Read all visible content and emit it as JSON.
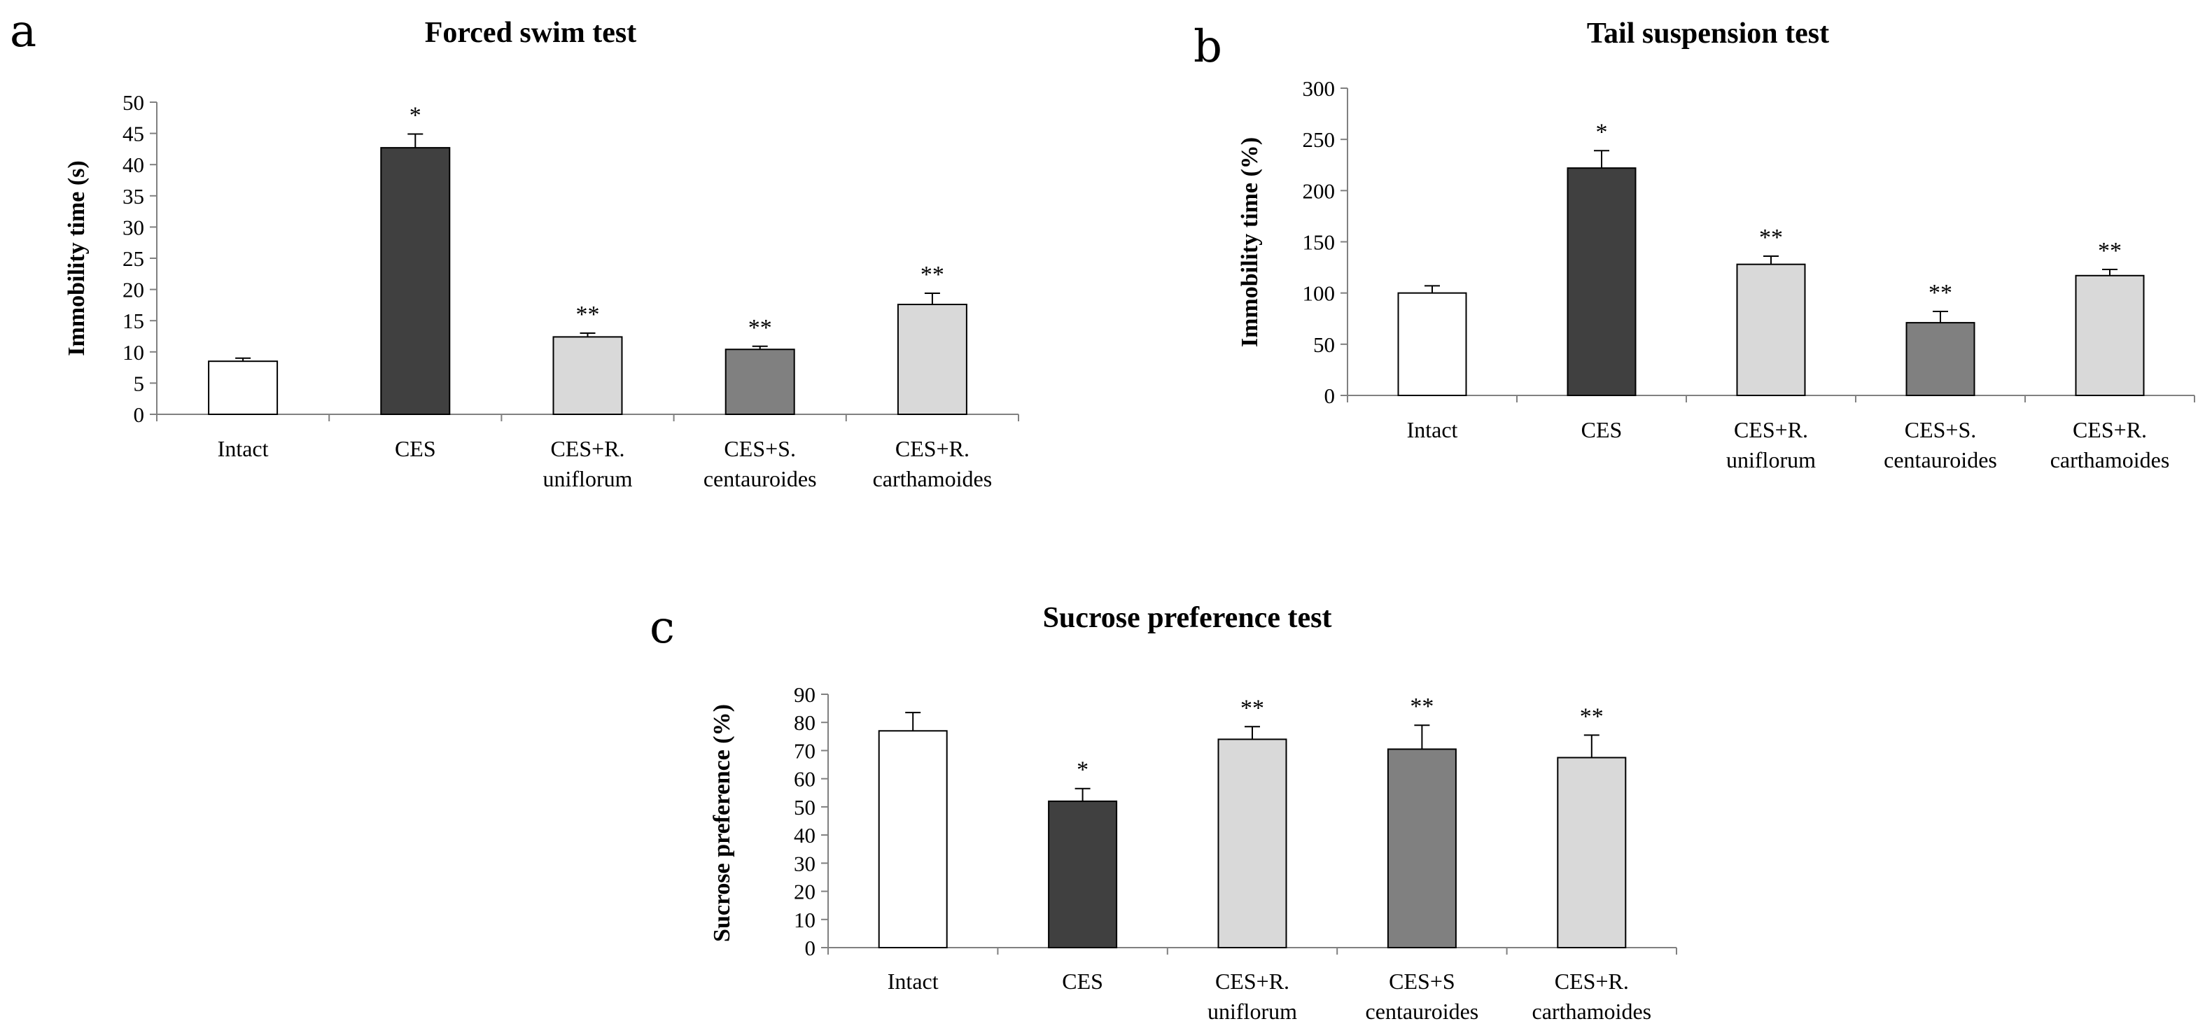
{
  "chart_data": [
    {
      "type": "bar",
      "panel": "a",
      "title": "Forced swim test",
      "xlabel": "",
      "ylabel": "Immobility time (s)",
      "ylim": [
        0,
        50
      ],
      "yticks": [
        0,
        5,
        10,
        15,
        20,
        25,
        30,
        35,
        40,
        45,
        50
      ],
      "categories": [
        [
          "Intact"
        ],
        [
          "CES"
        ],
        [
          "CES+R.",
          "uniflorum"
        ],
        [
          "CES+S.",
          "centauroides"
        ],
        [
          "CES+R.",
          "carthamoides"
        ]
      ],
      "values": [
        8.5,
        42.7,
        12.4,
        10.4,
        17.6
      ],
      "errors": [
        0.5,
        2.2,
        0.6,
        0.5,
        1.8
      ],
      "significance": [
        "",
        "*",
        "**",
        "**",
        "**"
      ],
      "colors": [
        "#ffffff",
        "#404040",
        "#d9d9d9",
        "#808080",
        "#d9d9d9"
      ]
    },
    {
      "type": "bar",
      "panel": "b",
      "title": "Tail suspension test",
      "xlabel": "",
      "ylabel": "Immobility time (%)",
      "ylim": [
        0,
        300
      ],
      "yticks": [
        0,
        50,
        100,
        150,
        200,
        250,
        300
      ],
      "categories": [
        [
          "Intact"
        ],
        [
          "CES"
        ],
        [
          "CES+R.",
          "uniflorum"
        ],
        [
          "CES+S.",
          "centauroides"
        ],
        [
          "CES+R.",
          "carthamoides"
        ]
      ],
      "values": [
        100,
        222,
        128,
        71,
        117
      ],
      "errors": [
        7,
        17,
        8,
        11,
        6
      ],
      "significance": [
        "",
        "*",
        "**",
        "**",
        "**"
      ],
      "colors": [
        "#ffffff",
        "#404040",
        "#d9d9d9",
        "#808080",
        "#d9d9d9"
      ]
    },
    {
      "type": "bar",
      "panel": "c",
      "title": "Sucrose preference test",
      "xlabel": "",
      "ylabel": "Sucrose preference (%)",
      "ylim": [
        0,
        90
      ],
      "yticks": [
        0,
        10,
        20,
        30,
        40,
        50,
        60,
        70,
        80,
        90
      ],
      "categories": [
        [
          "Intact"
        ],
        [
          "CES"
        ],
        [
          "CES+R.",
          "uniflorum"
        ],
        [
          "CES+S",
          "centauroides"
        ],
        [
          "CES+R.",
          "carthamoides"
        ]
      ],
      "values": [
        77,
        52,
        74,
        70.5,
        67.5
      ],
      "errors": [
        6.5,
        4.5,
        4.5,
        8.5,
        8
      ],
      "significance": [
        "",
        "*",
        "**",
        "**",
        "**"
      ],
      "colors": [
        "#ffffff",
        "#404040",
        "#d9d9d9",
        "#808080",
        "#d9d9d9"
      ]
    }
  ]
}
